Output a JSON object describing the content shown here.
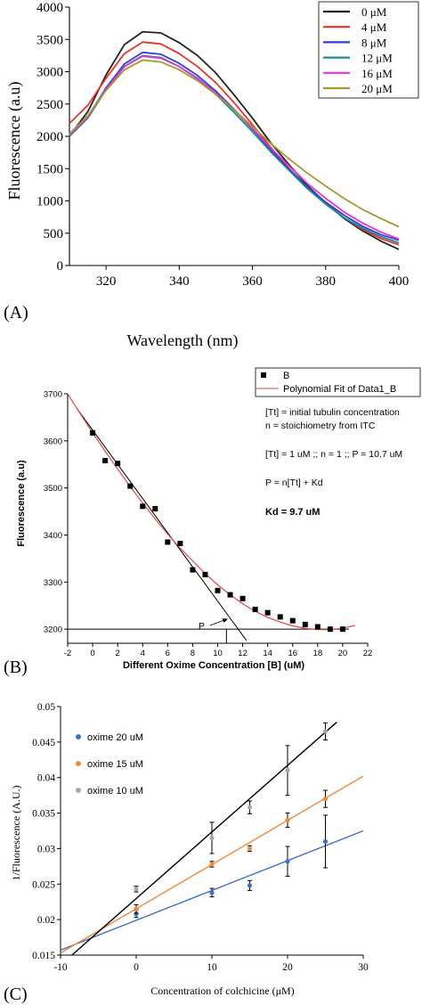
{
  "panels": [
    {
      "panel_label": "(A)",
      "chart_data": {
        "type": "line",
        "title": "",
        "xlabel": "Wavelength (nm)",
        "ylabel": "Fluorescence (a.u)",
        "xlim": [
          310,
          400
        ],
        "ylim": [
          0,
          4000
        ],
        "xticks": [
          320,
          340,
          360,
          380,
          400
        ],
        "yticks": [
          0,
          500,
          1000,
          1500,
          2000,
          2500,
          3000,
          3500,
          4000
        ],
        "grid": false,
        "legend_position": "top-right",
        "x": [
          310,
          315,
          320,
          325,
          330,
          335,
          340,
          345,
          350,
          355,
          360,
          365,
          370,
          375,
          380,
          385,
          390,
          395,
          400
        ],
        "series": [
          {
            "name": "0 μM",
            "color": "#222222",
            "values": [
              2010,
              2380,
              2950,
              3420,
              3620,
              3600,
              3450,
              3250,
              2980,
              2640,
              2280,
              1900,
              1560,
              1240,
              970,
              730,
              540,
              380,
              250
            ]
          },
          {
            "name": "4 μM",
            "color": "#e8322b",
            "values": [
              2200,
              2480,
              2900,
              3280,
              3460,
              3430,
              3280,
              3080,
              2830,
              2520,
              2180,
              1830,
              1500,
              1210,
              960,
              740,
              560,
              420,
              320
            ]
          },
          {
            "name": "8 μM",
            "color": "#2e3fd8",
            "values": [
              2000,
              2300,
              2750,
              3120,
              3300,
              3270,
              3130,
              2940,
              2700,
              2420,
              2110,
              1790,
              1490,
              1220,
              980,
              780,
              610,
              480,
              390
            ]
          },
          {
            "name": "12 μM",
            "color": "#1a8c8c",
            "values": [
              2000,
              2280,
              2720,
              3080,
              3250,
              3220,
              3080,
              2890,
              2650,
              2370,
              2070,
              1760,
              1470,
              1190,
              950,
              740,
              580,
              450,
              350
            ]
          },
          {
            "name": "16 μM",
            "color": "#e036d6",
            "values": [
              2020,
              2300,
              2730,
              3080,
              3240,
              3210,
              3080,
              2900,
              2670,
              2410,
              2120,
              1820,
              1540,
              1270,
              1040,
              830,
              660,
              520,
              410
            ]
          },
          {
            "name": "20 μM",
            "color": "#a39a2c",
            "values": [
              2040,
              2320,
              2710,
              3030,
              3180,
              3150,
              3030,
              2860,
              2650,
              2410,
              2150,
              1890,
              1650,
              1430,
              1230,
              1040,
              870,
              730,
              600
            ]
          }
        ]
      }
    },
    {
      "panel_label": "(B)",
      "annotations": {
        "line1": "[Tt] = initial tubulin concentration",
        "line2": "n = stoichiometry from ITC",
        "line3": "[Tt] = 1 uM ;; n = 1 ;; P = 10.7 uM",
        "line4": "P = n[Tt] + Kd",
        "line5": "Kd = 9.7 uM",
        "point_label": "P"
      },
      "chart_data": {
        "type": "scatter",
        "title": "",
        "xlabel": "Different Oxime Concentration [B] (uM)",
        "ylabel": "Fluorescence (a.u)",
        "xlim": [
          -2,
          22
        ],
        "ylim": [
          3170,
          3700
        ],
        "xticks": [
          -2,
          0,
          2,
          4,
          6,
          8,
          10,
          12,
          14,
          16,
          18,
          20,
          22
        ],
        "yticks": [
          3200,
          3300,
          3400,
          3500,
          3600,
          3700
        ],
        "grid": false,
        "legend_position": "top-right",
        "series": [
          {
            "name": "B",
            "color": "#000000",
            "kind": "scatter",
            "x": [
              0,
              1,
              2,
              3,
              4,
              5,
              6,
              7,
              8,
              9,
              10,
              11,
              12,
              13,
              14,
              15,
              16,
              17,
              18,
              19,
              20
            ],
            "y": [
              3617,
              3558,
              3552,
              3504,
              3461,
              3456,
              3385,
              3382,
              3326,
              3316,
              3282,
              3273,
              3265,
              3242,
              3235,
              3226,
              3218,
              3210,
              3205,
              3200,
              3200
            ]
          },
          {
            "name": "Polynomial Fit of Data1_B",
            "color": "#e0474c",
            "kind": "line",
            "x": [
              -2,
              -1,
              0,
              1,
              2,
              3,
              4,
              5,
              6,
              7,
              8,
              9,
              10,
              11,
              12,
              13,
              14,
              15,
              16,
              17,
              18,
              19,
              20,
              21
            ],
            "y": [
              3700,
              3658,
              3617,
              3578,
              3540,
              3503,
              3468,
              3434,
              3402,
              3372,
              3345,
              3318,
              3294,
              3273,
              3254,
              3238,
              3225,
              3215,
              3207,
              3202,
              3199,
              3199,
              3202,
              3208
            ]
          }
        ],
        "reference_lines": {
          "tangent": {
            "x": [
              -1.3,
              12.3
            ],
            "y": [
              3670,
              3176
            ]
          },
          "horizontal_y": 3200,
          "vertical_x": 10.7
        }
      }
    },
    {
      "panel_label": "(C)",
      "chart_data": {
        "type": "scatter",
        "title": "",
        "xlabel": "Concentration of colchicine (μM)",
        "ylabel": "1/Fluorescence (A.U.)",
        "xlim": [
          -10,
          30
        ],
        "ylim": [
          0.015,
          0.05
        ],
        "xticks": [
          -10,
          0,
          10,
          20,
          30
        ],
        "xtick_labels": [
          "-10",
          "0",
          "10",
          "20",
          "30"
        ],
        "yticks": [
          0.015,
          0.02,
          0.025,
          0.03,
          0.035,
          0.04,
          0.045,
          0.05
        ],
        "ytick_labels": [
          "0.015",
          "0.02",
          "0.025",
          "0.03",
          "0.035",
          "0.04",
          "0.045",
          "0.05"
        ],
        "grid": false,
        "legend_position": "top-left",
        "series": [
          {
            "name": "oxime 20 uM",
            "color": "#3f72c4",
            "line_color": "#3f72c4",
            "x": [
              0,
              10,
              15,
              20,
              25
            ],
            "y": [
              0.0208,
              0.0238,
              0.0248,
              0.0282,
              0.031
            ],
            "err": [
              0.0005,
              0.0006,
              0.0007,
              0.0021,
              0.0037
            ],
            "fit": {
              "x": [
                -10,
                30
              ],
              "y": [
                0.0157,
                0.0325
              ]
            }
          },
          {
            "name": "oxime 15 uM",
            "color": "#f0893a",
            "line_color": "#f0893a",
            "x": [
              0,
              10,
              15,
              20,
              25
            ],
            "y": [
              0.0215,
              0.0278,
              0.03,
              0.034,
              0.037
            ],
            "err": [
              0.0006,
              0.0004,
              0.0004,
              0.001,
              0.0012
            ],
            "fit": {
              "x": [
                -10,
                30
              ],
              "y": [
                0.0153,
                0.0402
              ]
            }
          },
          {
            "name": "oxime 10 uM",
            "color": "#a8a8a8",
            "line_color": "#000000",
            "x": [
              0,
              10,
              15,
              20,
              25
            ],
            "y": [
              0.0243,
              0.0315,
              0.0358,
              0.041,
              0.0465
            ],
            "err": [
              0.0004,
              0.0022,
              0.0009,
              0.0035,
              0.0012
            ],
            "fit": {
              "x": [
                -8.5,
                26.5
              ],
              "y": [
                0.015,
                0.0478
              ]
            }
          }
        ]
      }
    }
  ]
}
